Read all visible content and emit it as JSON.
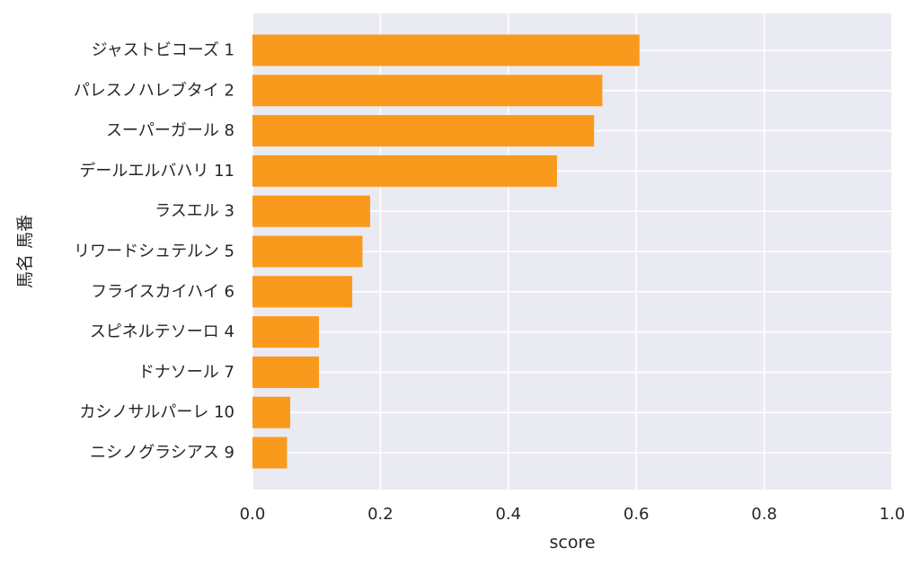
{
  "chart_data": {
    "type": "bar",
    "orientation": "horizontal",
    "categories": [
      "ジャストビコーズ 1",
      "パレスノハレブタイ 2",
      "スーパーガール 8",
      "デールエルバハリ 11",
      "ラスエル 3",
      "リワードシュテルン 5",
      "フライスカイハイ 6",
      "スピネルテソーロ 4",
      "ドナソール 7",
      "カシノサルパーレ 10",
      "ニシノグラシアス 9"
    ],
    "values": [
      0.605,
      0.547,
      0.534,
      0.476,
      0.184,
      0.172,
      0.156,
      0.104,
      0.104,
      0.059,
      0.054
    ],
    "xlabel": "score",
    "ylabel": "馬名 馬番",
    "xlim": [
      0,
      1.0
    ],
    "xticks": [
      "0.0",
      "0.2",
      "0.4",
      "0.6",
      "0.8",
      "1.0"
    ],
    "grid": true,
    "bar_color": "#f99a1c",
    "background_color": "#eaeaf2"
  }
}
